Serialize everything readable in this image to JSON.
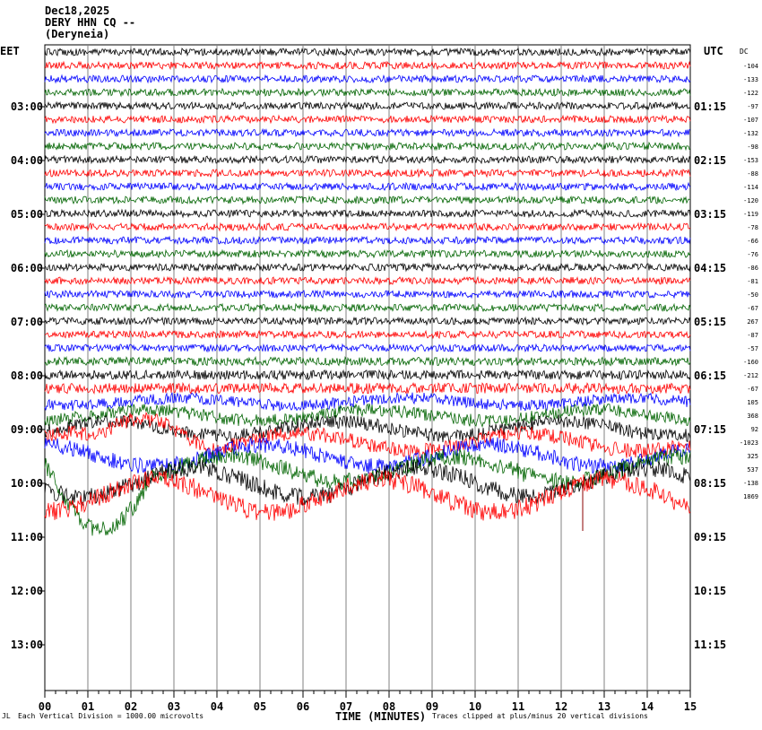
{
  "header": {
    "date": "Dec18,2025",
    "station": "DERY HHN CQ --",
    "location": "(Deryneia)"
  },
  "zones": {
    "left": "EET",
    "right": "UTC",
    "dc": "DC"
  },
  "footer": {
    "logo": "JL",
    "scale_note": "Each Vertical Division = 1000.00 microvolts",
    "clip_note": "Traces clipped at plus/minus 20 vertical divisions"
  },
  "colors": {
    "trace_cycle": [
      "#000000",
      "#ff0000",
      "#0000ff",
      "#006400"
    ],
    "grid": "#808080",
    "spike": "#8b0000"
  },
  "chart_data": {
    "type": "line",
    "title": "",
    "xlabel": "TIME (MINUTES)",
    "ylabel": "",
    "x_ticks": [
      "00",
      "01",
      "02",
      "03",
      "04",
      "05",
      "06",
      "07",
      "08",
      "09",
      "10",
      "11",
      "12",
      "13",
      "14",
      "15"
    ],
    "xlim": [
      0,
      15
    ],
    "grid": "vertical lines at each minute",
    "left_time_labels": [
      "03:00",
      "04:00",
      "05:00",
      "06:00",
      "07:00",
      "08:00",
      "09:00",
      "10:00",
      "11:00",
      "12:00",
      "13:00"
    ],
    "right_time_labels": [
      "01:15",
      "02:15",
      "03:15",
      "04:15",
      "05:15",
      "06:15",
      "07:15",
      "08:15",
      "09:15",
      "10:15",
      "11:15"
    ],
    "dc_offsets": [
      "-104",
      "-133",
      "-122",
      "-97",
      "-107",
      "-132",
      "-98",
      "-153",
      "-88",
      "-114",
      "-120",
      "-119",
      "-78",
      "-66",
      "-76",
      "-86",
      "-81",
      "-50",
      "-67",
      "267",
      "-87",
      "-57",
      "-160",
      "-212",
      "-67",
      "105",
      "368",
      "92",
      "-1023",
      "325",
      "537",
      "-138",
      "1869"
    ]
  }
}
